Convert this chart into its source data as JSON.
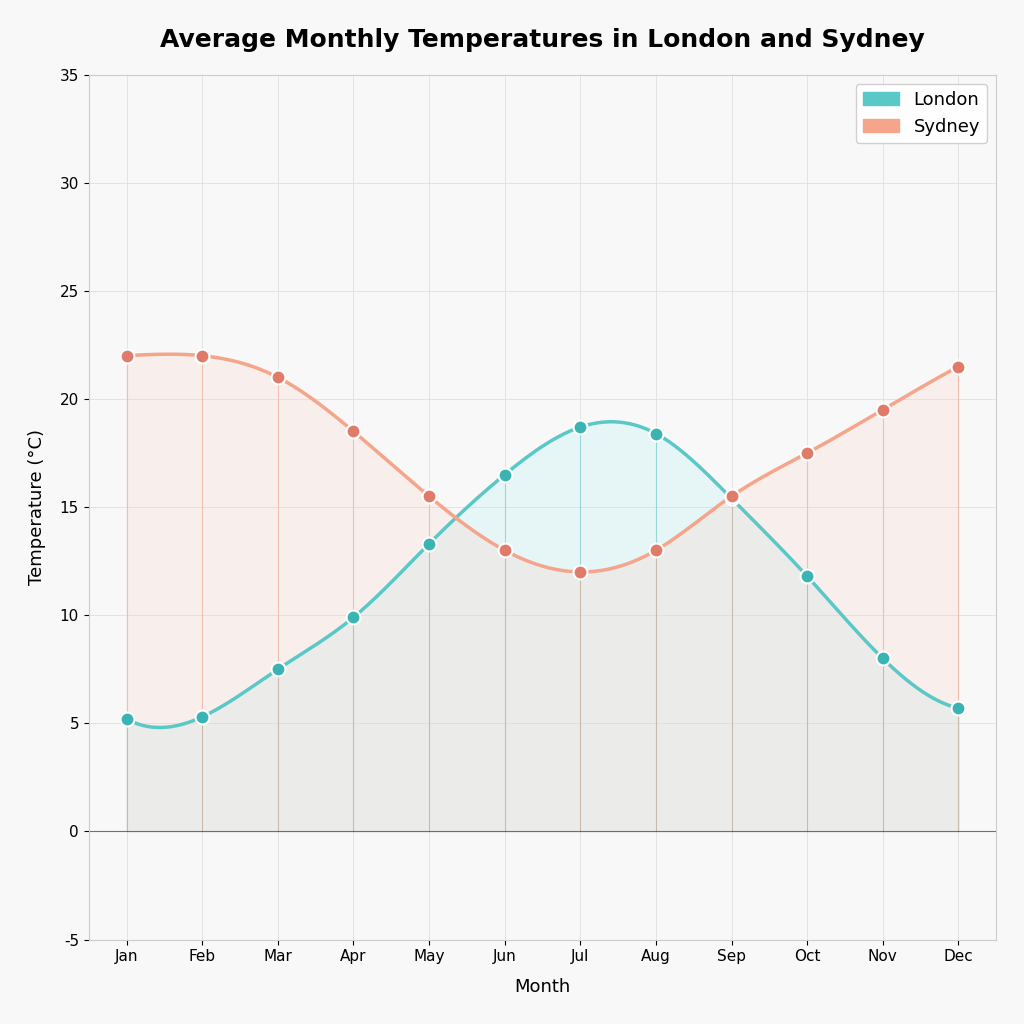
{
  "title": "Average Monthly Temperatures in London and Sydney",
  "xlabel": "Month",
  "ylabel": "Temperature (°C)",
  "months": [
    "Jan",
    "Feb",
    "Mar",
    "Apr",
    "May",
    "Jun",
    "Jul",
    "Aug",
    "Sep",
    "Oct",
    "Nov",
    "Dec"
  ],
  "london_temps": [
    5.2,
    5.3,
    7.5,
    9.9,
    13.3,
    16.5,
    18.7,
    18.4,
    15.4,
    11.8,
    8.0,
    5.7
  ],
  "sydney_temps": [
    22.0,
    22.0,
    21.0,
    18.5,
    15.5,
    13.0,
    12.0,
    13.0,
    15.5,
    17.5,
    19.5,
    21.5
  ],
  "london_color": "#5bc8c8",
  "sydney_color": "#f4a58a",
  "london_fill": "#b2eded",
  "sydney_fill": "#fad4c8",
  "london_marker_color": "#3ab3b3",
  "sydney_marker_color": "#e07b6a",
  "marker_size": 10,
  "line_width": 2.5,
  "ylim": [
    -5,
    35
  ],
  "yticks": [
    -5,
    0,
    5,
    10,
    15,
    20,
    25,
    30,
    35
  ],
  "background_color": "#f8f8f8",
  "grid_color": "#dddddd",
  "title_fontsize": 18,
  "label_fontsize": 13,
  "tick_fontsize": 11,
  "legend_london": "London",
  "legend_sydney": "Sydney"
}
